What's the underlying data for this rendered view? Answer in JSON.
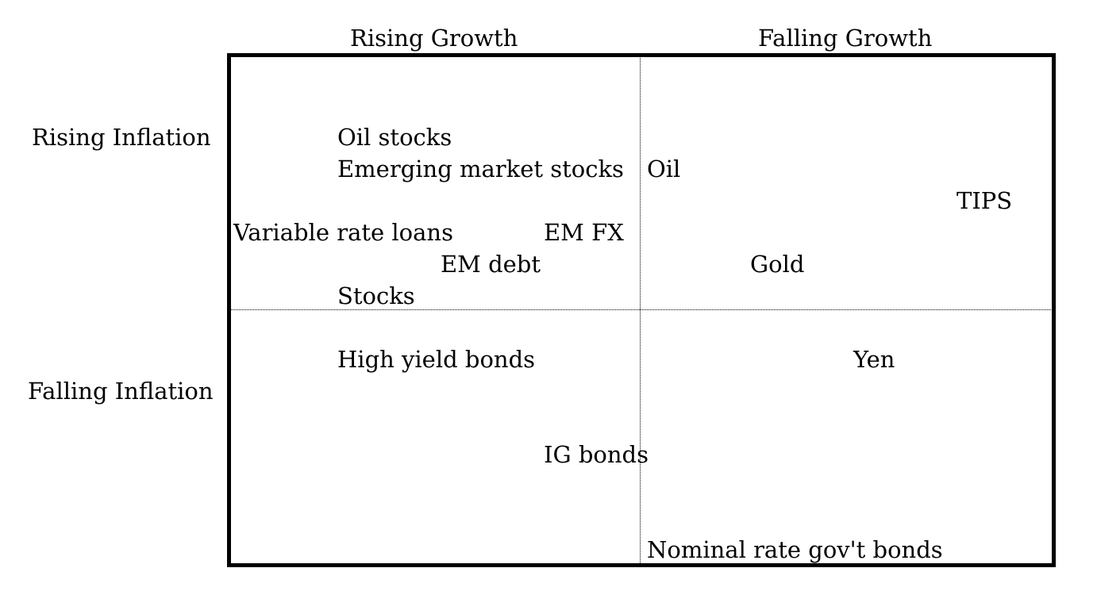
{
  "columns": {
    "rising_growth": "Rising Growth",
    "falling_growth": "Falling Growth"
  },
  "rows": {
    "rising_inflation": "Rising Inflation",
    "falling_inflation": "Falling Inflation"
  },
  "assets": {
    "oil_stocks": "Oil stocks",
    "em_stocks": "Emerging market stocks",
    "oil": "Oil",
    "tips": "TIPS",
    "variable_rate_loans": "Variable rate loans",
    "em_fx": "EM FX",
    "em_debt": "EM debt",
    "gold": "Gold",
    "stocks": "Stocks",
    "high_yield_bonds": "High yield bonds",
    "yen": "Yen",
    "ig_bonds": "IG bonds",
    "nominal_bonds": "Nominal rate gov't bonds"
  }
}
